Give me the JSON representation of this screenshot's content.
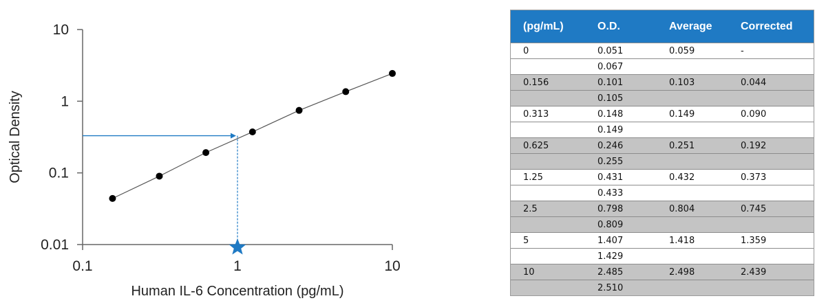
{
  "chart_data": {
    "type": "scatter",
    "xscale": "log",
    "yscale": "log",
    "xlim": [
      0.1,
      10
    ],
    "ylim": [
      0.01,
      10
    ],
    "xticks": [
      "0.1",
      "1",
      "10"
    ],
    "yticks": [
      "10",
      "1",
      "0.1",
      "0.01"
    ],
    "xlabel": "Human IL-6 Concentration (pg/mL)",
    "ylabel": "Optical Density",
    "points": [
      {
        "x": 0.156,
        "y": 0.044
      },
      {
        "x": 0.313,
        "y": 0.09
      },
      {
        "x": 0.625,
        "y": 0.192
      },
      {
        "x": 1.25,
        "y": 0.373
      },
      {
        "x": 2.5,
        "y": 0.745
      },
      {
        "x": 5,
        "y": 1.359
      },
      {
        "x": 10,
        "y": 2.439
      }
    ],
    "fit_line": true,
    "annotation": {
      "sample_od": 0.33,
      "derived_concentration": 1
    },
    "colors": {
      "points": "#000000",
      "fit": "#555555",
      "arrow": "#1f7ac4",
      "star": "#1f7ac4",
      "axis": "#666666"
    },
    "grid": false
  },
  "table": {
    "header_color": "#1f7ac4",
    "shade_color": "#c4c4c4",
    "headers": [
      "(pg/mL)",
      "O.D.",
      "Average",
      "Corrected"
    ],
    "rows": [
      [
        "0",
        "0.051",
        "0.059",
        "-"
      ],
      [
        "",
        "0.067",
        "",
        ""
      ],
      [
        "0.156",
        "0.101",
        "0.103",
        "0.044"
      ],
      [
        "",
        "0.105",
        "",
        ""
      ],
      [
        "0.313",
        "0.148",
        "0.149",
        "0.090"
      ],
      [
        "",
        "0.149",
        "",
        ""
      ],
      [
        "0.625",
        "0.246",
        "0.251",
        "0.192"
      ],
      [
        "",
        "0.255",
        "",
        ""
      ],
      [
        "1.25",
        "0.431",
        "0.432",
        "0.373"
      ],
      [
        "",
        "0.433",
        "",
        ""
      ],
      [
        "2.5",
        "0.798",
        "0.804",
        "0.745"
      ],
      [
        "",
        "0.809",
        "",
        ""
      ],
      [
        "5",
        "1.407",
        "1.418",
        "1.359"
      ],
      [
        "",
        "1.429",
        "",
        ""
      ],
      [
        "10",
        "2.485",
        "2.498",
        "2.439"
      ],
      [
        "",
        "2.510",
        "",
        ""
      ]
    ]
  }
}
